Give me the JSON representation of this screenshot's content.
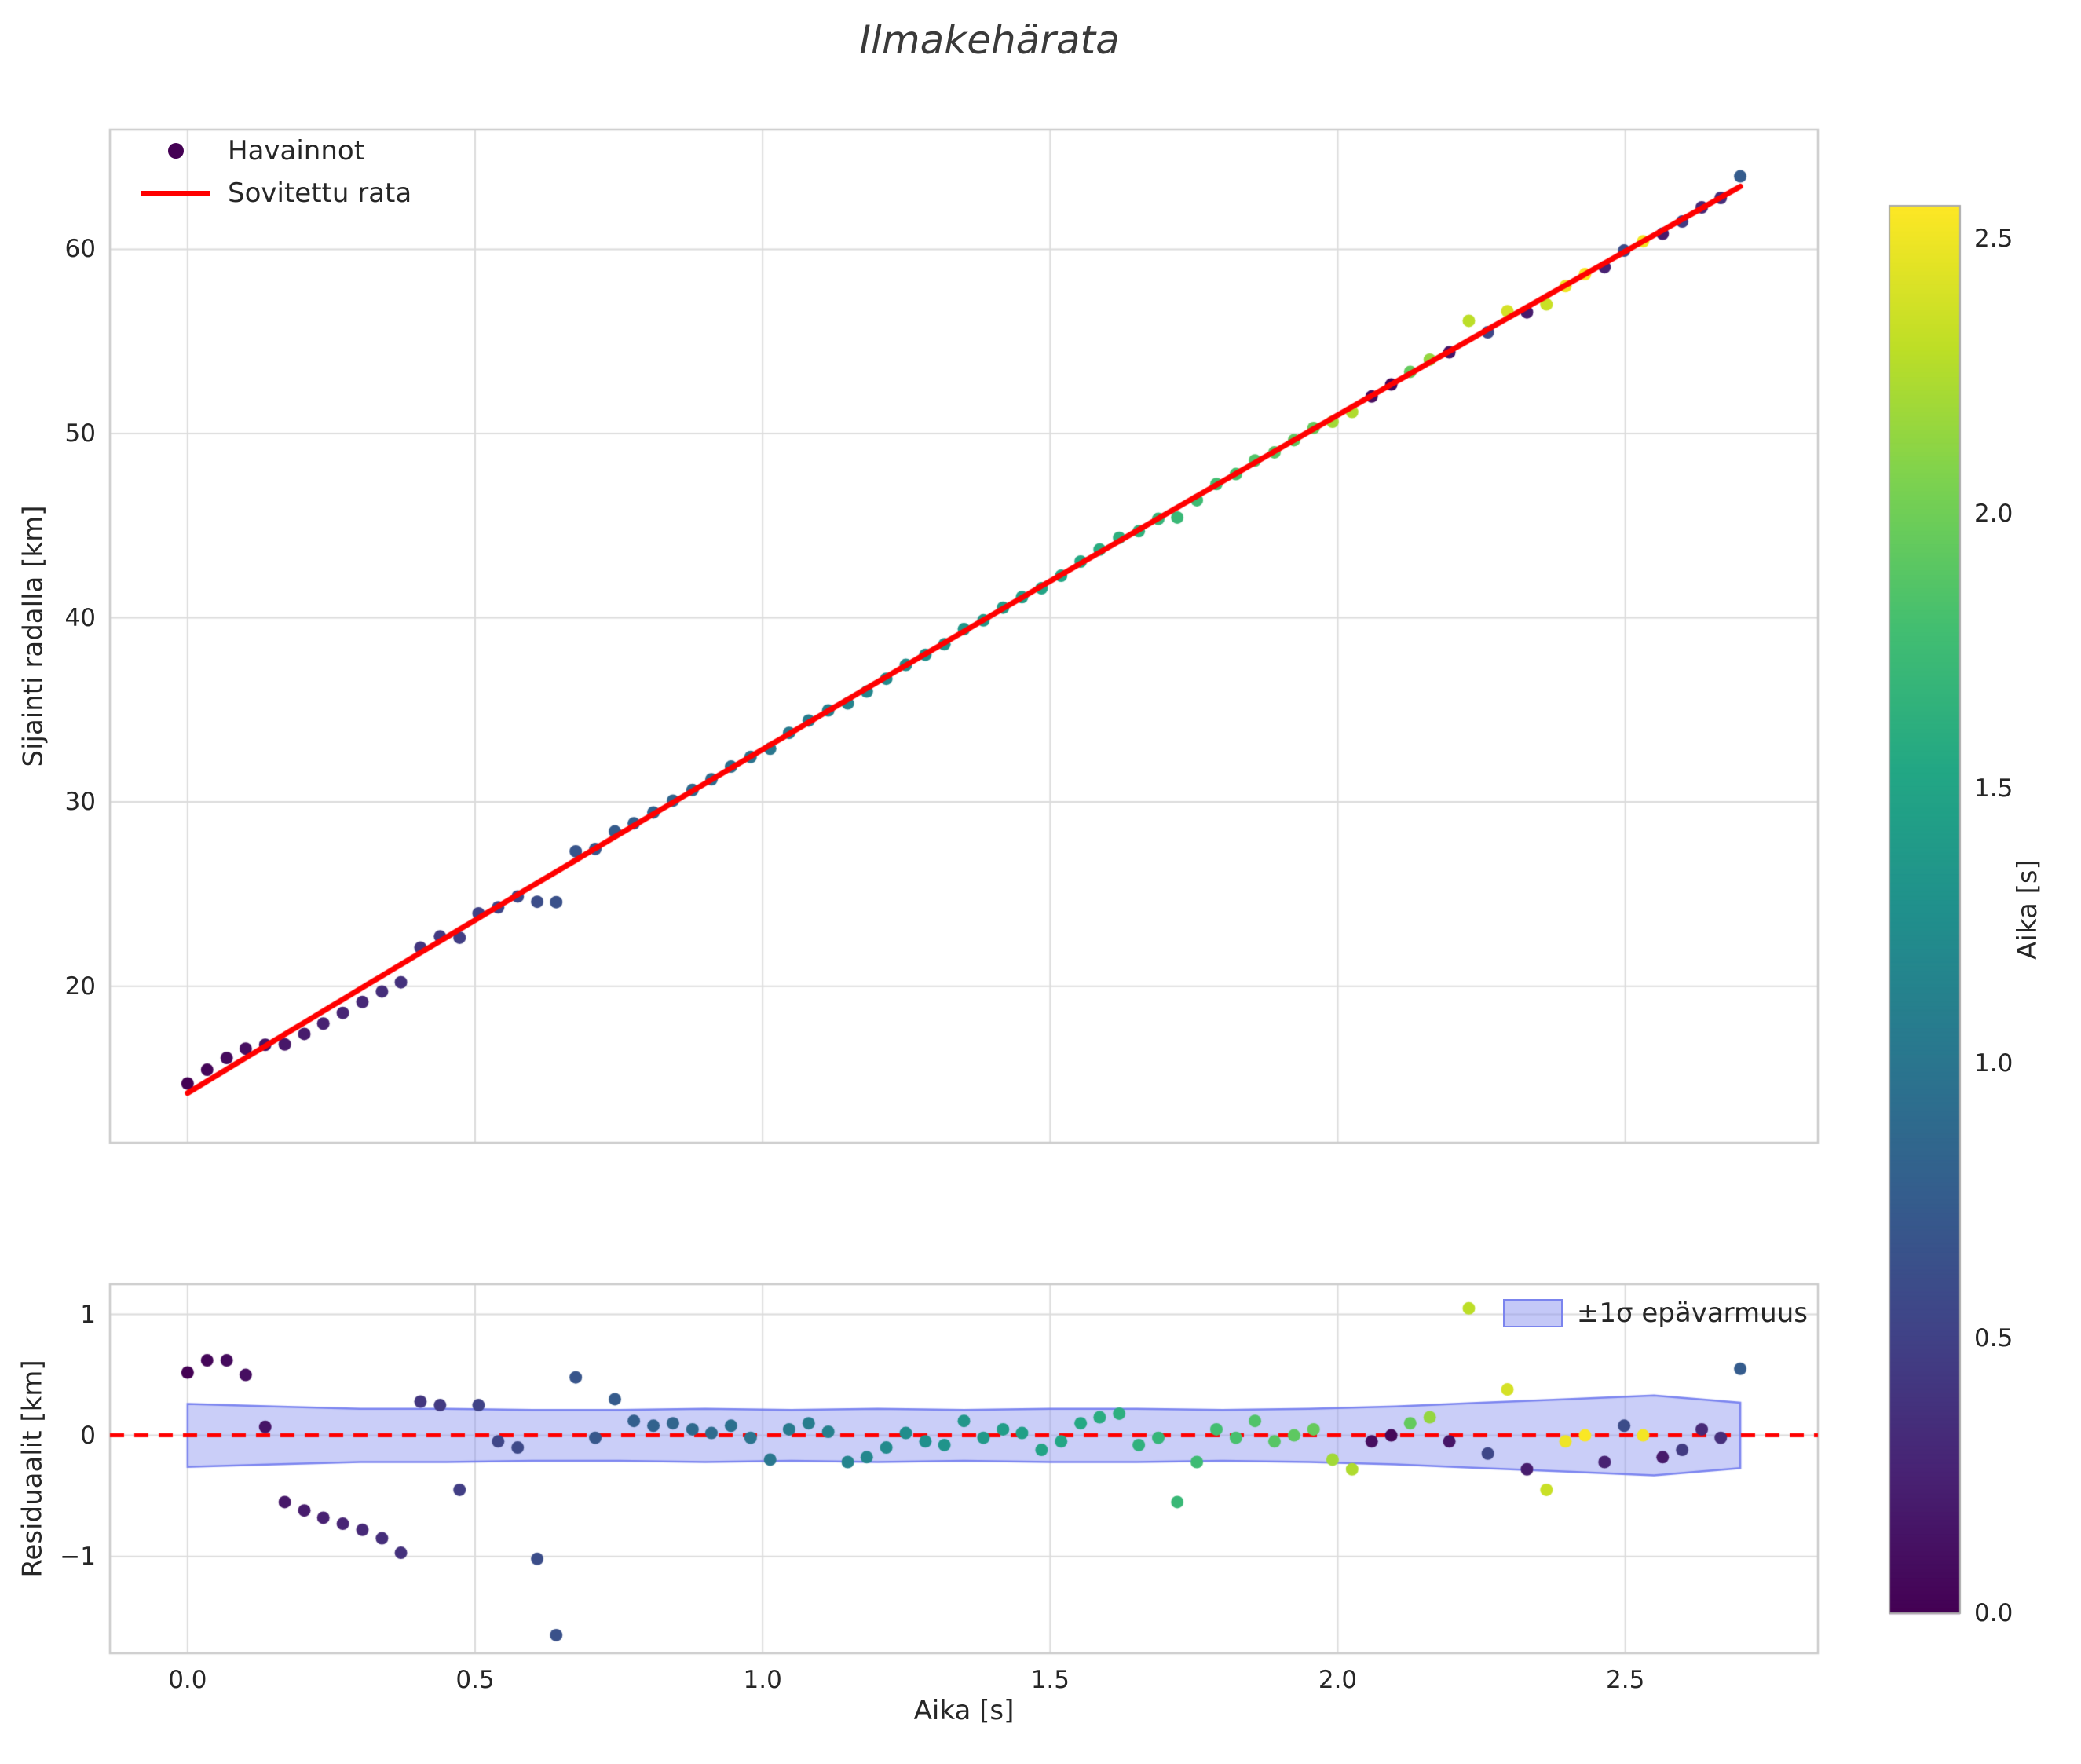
{
  "title": "Ilmakehärata",
  "colors": {
    "fit_line": "#ff0000",
    "zero_line": "#ff0000",
    "band_fill": "#8a92f0",
    "band_edge": "#7b84ee",
    "grid": "#dcdcdc",
    "spine": "#cccccc",
    "text": "#262626",
    "legend_dot": "#440154"
  },
  "colorbar": {
    "label": "Aika [s]",
    "min": 0,
    "max": 2.56,
    "ticks": [
      0.0,
      0.5,
      1.0,
      1.5,
      2.0,
      2.5
    ],
    "tick_labels": [
      "0.0",
      "0.5",
      "1.0",
      "1.5",
      "2.0",
      "2.5"
    ]
  },
  "chart_data": [
    {
      "type": "scatter",
      "title": "Ilmakehärata",
      "xlabel": "",
      "ylabel": "Sijainti radalla [km]",
      "xlim": [
        -0.135,
        2.835
      ],
      "ylim": [
        11.5,
        66.5
      ],
      "grid": true,
      "legend_position": "upper left",
      "legend": [
        {
          "label": "Havainnot",
          "marker": "dot",
          "color": "#440154"
        },
        {
          "label": "Sovitettu rata",
          "marker": "line",
          "color": "#ff0000"
        }
      ],
      "xticks": {
        "values": [
          0.0,
          0.5,
          1.0,
          1.5,
          2.0,
          2.5
        ],
        "labels": []
      },
      "yticks": {
        "values": [
          20,
          30,
          40,
          50,
          60
        ],
        "labels": [
          "20",
          "30",
          "40",
          "50",
          "60"
        ]
      },
      "fit": {
        "label": "Sovitettu rata",
        "color": "#ff0000",
        "model": "y = a + b*t + c*t^2",
        "coeffs": {
          "a": 14.2,
          "b": 18.9,
          "c": -0.25
        },
        "t_range": [
          0.0,
          2.7
        ]
      },
      "points": {
        "t": [
          0,
          0.034,
          0.068,
          0.101,
          0.135,
          0.169,
          0.203,
          0.236,
          0.27,
          0.304,
          0.338,
          0.371,
          0.405,
          0.439,
          0.473,
          0.506,
          0.54,
          0.574,
          0.608,
          0.641,
          0.675,
          0.709,
          0.743,
          0.776,
          0.81,
          0.844,
          0.878,
          0.911,
          0.945,
          0.979,
          1.013,
          1.046,
          1.08,
          1.114,
          1.148,
          1.181,
          1.215,
          1.249,
          1.283,
          1.316,
          1.35,
          1.384,
          1.418,
          1.451,
          1.485,
          1.519,
          1.553,
          1.586,
          1.62,
          1.654,
          1.688,
          1.721,
          1.755,
          1.789,
          1.823,
          1.856,
          1.89,
          1.924,
          1.958,
          1.991,
          2.025,
          2.059,
          2.093,
          2.126,
          2.16,
          2.194,
          2.228,
          2.261,
          2.295,
          2.329,
          2.363,
          2.396,
          2.43,
          2.464,
          2.498,
          2.531,
          2.565,
          2.599,
          2.633,
          2.666,
          2.7
        ],
        "y": [
          14.72,
          15.46,
          16.1,
          16.61,
          16.82,
          16.84,
          17.41,
          17.97,
          18.55,
          19.14,
          19.71,
          20.21,
          22.09,
          22.7,
          22.63,
          23.95,
          24.28,
          24.87,
          24.58,
          24.56,
          27.32,
          27.45,
          28.4,
          28.84,
          29.43,
          30.07,
          30.65,
          31.23,
          31.92,
          32.44,
          32.89,
          33.75,
          34.42,
          34.97,
          35.35,
          35.99,
          36.69,
          37.44,
          37.99,
          38.56,
          39.38,
          39.86,
          40.55,
          41.12,
          41.6,
          42.28,
          43.05,
          43.7,
          44.34,
          44.7,
          45.37,
          45.44,
          46.38,
          47.26,
          47.8,
          48.54,
          48.98,
          49.64,
          50.3,
          50.64,
          51.17,
          52.01,
          52.66,
          53.35,
          54.01,
          54.41,
          56.12,
          55.5,
          56.64,
          56.58,
          57.01,
          58,
          58.65,
          59.03,
          59.93,
          60.43,
          60.85,
          61.51,
          62.28,
          62.79,
          63.96
        ],
        "c": [
          0,
          0.03,
          0.07,
          0.1,
          0.14,
          0.17,
          0.2,
          0.24,
          0.27,
          0.3,
          0.34,
          0.37,
          0.41,
          0.44,
          0.47,
          0.51,
          0.54,
          0.57,
          0.61,
          0.64,
          0.68,
          0.71,
          0.74,
          0.78,
          0.81,
          0.84,
          0.88,
          0.91,
          0.95,
          0.98,
          1.01,
          1.05,
          1.08,
          1.11,
          1.15,
          1.18,
          1.22,
          1.25,
          1.28,
          1.32,
          1.35,
          1.38,
          1.42,
          1.45,
          1.49,
          1.52,
          1.55,
          1.59,
          1.62,
          1.65,
          1.69,
          1.72,
          1.76,
          1.79,
          1.82,
          1.86,
          1.89,
          1.92,
          1.96,
          2.2,
          2.25,
          0.1,
          0.05,
          1.95,
          2.15,
          0.15,
          2.3,
          0.55,
          2.4,
          0.2,
          2.35,
          2.5,
          2.55,
          0.25,
          0.6,
          2.52,
          0.18,
          0.45,
          0.3,
          0.35,
          0.75
        ]
      }
    },
    {
      "type": "scatter",
      "title": "",
      "xlabel": "Aika [s]",
      "ylabel": "Residuaalit [km]",
      "xlim": [
        -0.135,
        2.835
      ],
      "ylim": [
        -1.8,
        1.25
      ],
      "grid": true,
      "legend_position": "upper right",
      "legend": [
        {
          "label": "±1σ epävarmuus",
          "marker": "patch",
          "color": "#8a92f0"
        }
      ],
      "xticks": {
        "values": [
          0.0,
          0.5,
          1.0,
          1.5,
          2.0,
          2.5
        ],
        "labels": [
          "0.0",
          "0.5",
          "1.0",
          "1.5",
          "2.0",
          "2.5"
        ]
      },
      "yticks": {
        "values": [
          -1,
          0,
          1
        ],
        "labels": [
          "−1",
          "0",
          "1"
        ]
      },
      "zero_line": {
        "y": 0,
        "color": "#ff0000",
        "style": "dashed"
      },
      "band": {
        "label": "±1σ epävarmuus",
        "x": [
          0,
          0.15,
          0.3,
          0.45,
          0.6,
          0.75,
          0.9,
          1.05,
          1.2,
          1.35,
          1.5,
          1.65,
          1.8,
          1.95,
          2.1,
          2.25,
          2.4,
          2.55,
          2.7
        ],
        "sigma": [
          0.26,
          0.24,
          0.22,
          0.22,
          0.21,
          0.21,
          0.22,
          0.21,
          0.22,
          0.21,
          0.22,
          0.22,
          0.21,
          0.22,
          0.24,
          0.27,
          0.3,
          0.33,
          0.27
        ]
      },
      "points": {
        "t": [
          0,
          0.034,
          0.068,
          0.101,
          0.135,
          0.169,
          0.203,
          0.236,
          0.27,
          0.304,
          0.338,
          0.371,
          0.405,
          0.439,
          0.473,
          0.506,
          0.54,
          0.574,
          0.608,
          0.641,
          0.675,
          0.709,
          0.743,
          0.776,
          0.81,
          0.844,
          0.878,
          0.911,
          0.945,
          0.979,
          1.013,
          1.046,
          1.08,
          1.114,
          1.148,
          1.181,
          1.215,
          1.249,
          1.283,
          1.316,
          1.35,
          1.384,
          1.418,
          1.451,
          1.485,
          1.519,
          1.553,
          1.586,
          1.62,
          1.654,
          1.688,
          1.721,
          1.755,
          1.789,
          1.823,
          1.856,
          1.89,
          1.924,
          1.958,
          1.991,
          2.025,
          2.059,
          2.093,
          2.126,
          2.16,
          2.194,
          2.228,
          2.261,
          2.295,
          2.329,
          2.363,
          2.396,
          2.43,
          2.464,
          2.498,
          2.531,
          2.565,
          2.599,
          2.633,
          2.666,
          2.7
        ],
        "r": [
          0.52,
          0.62,
          0.62,
          0.5,
          0.07,
          -0.55,
          -0.62,
          -0.68,
          -0.73,
          -0.78,
          -0.85,
          -0.97,
          0.28,
          0.25,
          -0.45,
          0.25,
          -0.05,
          -0.1,
          -1.02,
          -1.65,
          0.48,
          -0.02,
          0.3,
          0.12,
          0.08,
          0.1,
          0.05,
          0.02,
          0.08,
          -0.02,
          -0.2,
          0.05,
          0.1,
          0.03,
          -0.22,
          -0.18,
          -0.1,
          0.02,
          -0.05,
          -0.08,
          0.12,
          -0.02,
          0.05,
          0.02,
          -0.12,
          -0.05,
          0.1,
          0.15,
          0.18,
          -0.08,
          -0.02,
          -0.55,
          -0.22,
          0.05,
          -0.02,
          0.12,
          -0.05,
          0,
          0.05,
          -0.2,
          -0.28,
          -0.05,
          0,
          0.1,
          0.15,
          -0.05,
          1.05,
          -0.15,
          0.38,
          -0.28,
          -0.45,
          -0.05,
          0,
          -0.22,
          0.08,
          0,
          -0.18,
          -0.12,
          0.05,
          -0.02,
          0.55
        ],
        "c": [
          0,
          0.03,
          0.07,
          0.1,
          0.14,
          0.17,
          0.2,
          0.24,
          0.27,
          0.3,
          0.34,
          0.37,
          0.41,
          0.44,
          0.47,
          0.51,
          0.54,
          0.57,
          0.61,
          0.64,
          0.68,
          0.71,
          0.74,
          0.78,
          0.81,
          0.84,
          0.88,
          0.91,
          0.95,
          0.98,
          1.01,
          1.05,
          1.08,
          1.11,
          1.15,
          1.18,
          1.22,
          1.25,
          1.28,
          1.32,
          1.35,
          1.38,
          1.42,
          1.45,
          1.49,
          1.52,
          1.55,
          1.59,
          1.62,
          1.65,
          1.69,
          1.72,
          1.76,
          1.79,
          1.82,
          1.86,
          1.89,
          1.92,
          1.96,
          2.2,
          2.25,
          0.1,
          0.05,
          1.95,
          2.15,
          0.15,
          2.3,
          0.55,
          2.4,
          0.2,
          2.35,
          2.5,
          2.55,
          0.25,
          0.6,
          2.52,
          0.18,
          0.45,
          0.3,
          0.35,
          0.75
        ]
      }
    }
  ]
}
